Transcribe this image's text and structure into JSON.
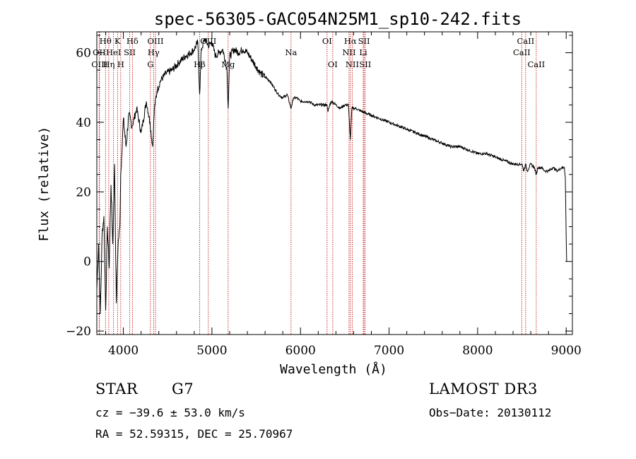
{
  "chart_data": {
    "type": "line",
    "title": "spec-56305-GAC054N25M1_sp10-242.fits",
    "xlabel": "Wavelength (Å)",
    "ylabel": "Flux (relative)",
    "xlim": [
      3700,
      9070
    ],
    "ylim": [
      -21,
      66
    ],
    "xticks": [
      4000,
      5000,
      6000,
      7000,
      8000,
      9000
    ],
    "yticks": [
      -20,
      0,
      20,
      40,
      60
    ],
    "grid": false,
    "series": [
      {
        "name": "flux",
        "x": [
          3700,
          3720,
          3740,
          3760,
          3780,
          3800,
          3820,
          3840,
          3860,
          3880,
          3900,
          3920,
          3940,
          3960,
          3970,
          3980,
          4000,
          4030,
          4060,
          4100,
          4150,
          4200,
          4260,
          4300,
          4330,
          4350,
          4380,
          4420,
          4480,
          4550,
          4620,
          4700,
          4760,
          4800,
          4840,
          4861,
          4880,
          4920,
          4960,
          5000,
          5040,
          5080,
          5120,
          5150,
          5170,
          5183,
          5200,
          5250,
          5300,
          5350,
          5400,
          5450,
          5500,
          5550,
          5600,
          5650,
          5700,
          5750,
          5800,
          5850,
          5893,
          5920,
          5960,
          6000,
          6050,
          6100,
          6150,
          6200,
          6250,
          6300,
          6310,
          6330,
          6350,
          6400,
          6450,
          6500,
          6540,
          6563,
          6580,
          6620,
          6700,
          6800,
          6900,
          7000,
          7100,
          7200,
          7300,
          7400,
          7500,
          7600,
          7700,
          7800,
          7900,
          8000,
          8100,
          8200,
          8300,
          8400,
          8500,
          8520,
          8542,
          8560,
          8600,
          8640,
          8662,
          8680,
          8720,
          8760,
          8800,
          8850,
          8900,
          8950,
          8980,
          8990,
          9000,
          9005
        ],
        "values": [
          -8,
          5,
          -15,
          8,
          13,
          -14,
          10,
          -2,
          22,
          5,
          28,
          -12,
          5,
          10,
          25,
          30,
          41,
          33,
          42,
          39,
          44,
          37,
          46,
          40,
          33,
          44,
          49,
          52,
          54,
          55,
          57,
          59,
          60,
          61,
          63,
          48,
          61,
          64,
          62,
          63,
          59,
          60,
          61,
          58,
          55,
          44,
          59,
          61,
          60,
          61,
          60,
          58,
          56,
          54,
          53,
          52,
          50,
          48,
          47,
          48,
          44,
          47,
          47,
          46,
          46,
          46,
          45,
          45,
          45,
          45,
          43,
          45,
          46,
          45,
          44,
          45,
          45,
          35,
          44,
          44,
          43,
          42,
          41,
          40,
          39,
          38,
          37,
          36,
          35,
          34,
          33,
          33,
          32,
          31,
          31,
          30,
          29,
          28,
          28,
          26,
          28,
          26,
          28,
          27,
          25,
          27,
          27,
          26,
          26,
          27,
          26,
          27,
          27,
          24,
          7,
          0
        ]
      }
    ],
    "line_markers": [
      {
        "name": "Hθ",
        "x": 3798,
        "row": 1
      },
      {
        "name": "OII",
        "x": 3727,
        "row": 2
      },
      {
        "name": "OIII",
        "x": 3730,
        "row": 3
      },
      {
        "name": "Hη",
        "x": 3835,
        "row": 3
      },
      {
        "name": "HeI",
        "x": 3889,
        "row": 2
      },
      {
        "name": "K",
        "x": 3934,
        "row": 1
      },
      {
        "name": "H",
        "x": 3970,
        "row": 3
      },
      {
        "name": "Hδ",
        "x": 4102,
        "row": 1
      },
      {
        "name": "SII",
        "x": 4072,
        "row": 2
      },
      {
        "name": "OIII",
        "x": 4363,
        "row": 1
      },
      {
        "name": "Hγ",
        "x": 4341,
        "row": 2
      },
      {
        "name": "G",
        "x": 4305,
        "row": 3
      },
      {
        "name": "Hβ",
        "x": 4861,
        "row": 3
      },
      {
        "name": "OIII",
        "x": 4959,
        "row": 1
      },
      {
        "name": "Mg",
        "x": 5183,
        "row": 3
      },
      {
        "name": "Na",
        "x": 5893,
        "row": 2
      },
      {
        "name": "OI",
        "x": 6300,
        "row": 1
      },
      {
        "name": "OI",
        "x": 6364,
        "row": 3
      },
      {
        "name": "Hα",
        "x": 6563,
        "row": 1
      },
      {
        "name": "NII",
        "x": 6548,
        "row": 2
      },
      {
        "name": "NII",
        "x": 6584,
        "row": 3
      },
      {
        "name": "SII",
        "x": 6717,
        "row": 1
      },
      {
        "name": "Li",
        "x": 6708,
        "row": 2
      },
      {
        "name": "SII",
        "x": 6731,
        "row": 3
      },
      {
        "name": "CaII",
        "x": 8542,
        "row": 1
      },
      {
        "name": "CaII",
        "x": 8498,
        "row": 2
      },
      {
        "name": "CaII",
        "x": 8662,
        "row": 3
      }
    ]
  },
  "info": {
    "object_class": "STAR",
    "subclass": "G7",
    "survey": "LAMOST DR3",
    "cz": "cz = −39.6 ± 53.0 km/s",
    "obs_date": "Obs−Date: 20130112",
    "coords": "RA =  52.59315, DEC =  25.70967"
  },
  "colors": {
    "marker_line": "#c00000",
    "spectrum": "#000000",
    "background": "#ffffff"
  }
}
